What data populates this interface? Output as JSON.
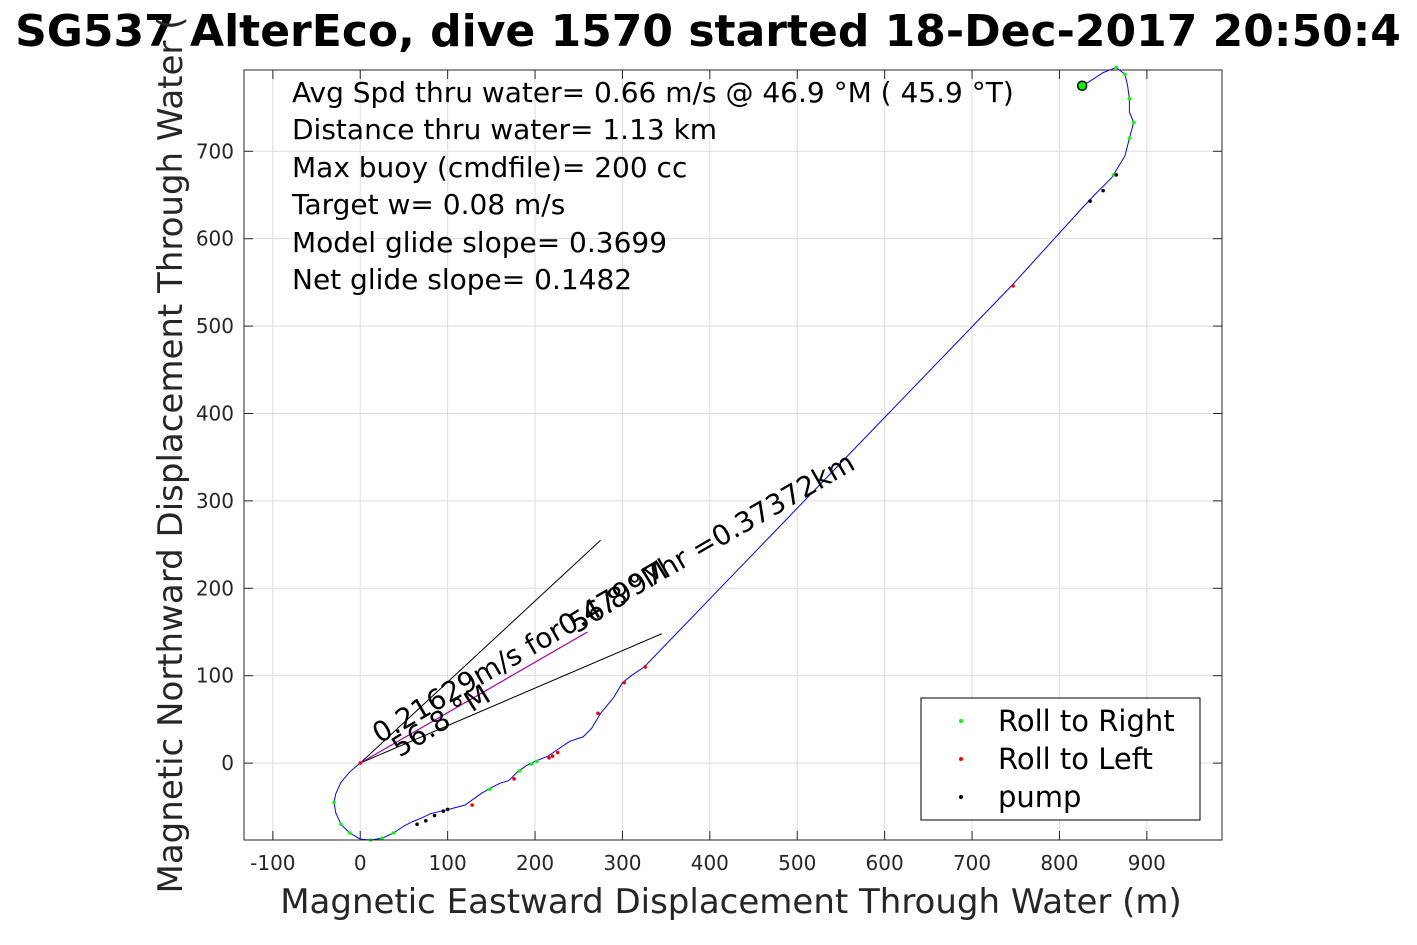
{
  "chart_data": {
    "type": "line",
    "title": "SG537 AlterEco, dive 1570 started 18-Dec-2017 20:50:4",
    "xlabel": "Magnetic Eastward Displacement Through Water (m)",
    "ylabel": "Magnetic Northward Displacement Through Water (",
    "xlim": [
      -133,
      986
    ],
    "ylim": [
      -88,
      793
    ],
    "xticks": [
      -100,
      0,
      100,
      200,
      300,
      400,
      500,
      600,
      700,
      800,
      900
    ],
    "yticks": [
      0,
      100,
      200,
      300,
      400,
      500,
      600,
      700
    ],
    "grid": true,
    "info_lines": [
      "Avg Spd thru water=  0.66 m/s @  46.9 °M ( 45.9 °T)",
      "Distance thru water=  1.13 km",
      "Max buoy (cmdfile)= 200 cc",
      "Target w= 0.08 m/s",
      "Model glide slope= 0.3699",
      "Net glide slope= 0.1482"
    ],
    "track": {
      "name": "Track",
      "color": "#0000ff",
      "x": [
        0,
        -12,
        -22,
        -28,
        -30,
        -28,
        -22,
        -12,
        0,
        12,
        25,
        38,
        50,
        60,
        70,
        80,
        92,
        105,
        120,
        138,
        150,
        160,
        170,
        180,
        190,
        200,
        215,
        225,
        240,
        255,
        265,
        275,
        290,
        300,
        310,
        325,
        745,
        825,
        840,
        860,
        875,
        880,
        885,
        880,
        880,
        878,
        875,
        865,
        850,
        827
      ],
      "y": [
        0,
        -10,
        -22,
        -35,
        -45,
        -57,
        -70,
        -80,
        -87,
        -88,
        -86,
        -80,
        -72,
        -67,
        -63,
        -58,
        -55,
        -52,
        -48,
        -35,
        -28,
        -23,
        -20,
        -10,
        -3,
        2,
        8,
        15,
        25,
        30,
        40,
        57,
        75,
        92,
        100,
        110,
        546,
        634,
        650,
        670,
        695,
        715,
        733,
        745,
        760,
        775,
        788,
        796,
        790,
        775
      ]
    },
    "roll_right": {
      "name": "Roll to Right",
      "color": "#00ff00",
      "points": [
        [
          -30,
          -45
        ],
        [
          -22,
          -70
        ],
        [
          -12,
          -80
        ],
        [
          12,
          -88
        ],
        [
          25,
          -86
        ],
        [
          38,
          -80
        ],
        [
          148,
          -30
        ],
        [
          182,
          -9
        ],
        [
          196,
          -1
        ],
        [
          202,
          2
        ],
        [
          862,
          673
        ],
        [
          880,
          715
        ],
        [
          885,
          733
        ],
        [
          880,
          760
        ],
        [
          875,
          788
        ],
        [
          865,
          796
        ]
      ]
    },
    "roll_left": {
      "name": "Roll to Left",
      "color": "#ff0000",
      "points": [
        [
          0,
          0
        ],
        [
          128,
          -48
        ],
        [
          176,
          -18
        ],
        [
          216,
          6
        ],
        [
          220,
          8
        ],
        [
          226,
          12
        ],
        [
          272,
          57
        ],
        [
          302,
          92
        ],
        [
          326,
          110
        ],
        [
          747,
          546
        ]
      ]
    },
    "pump": {
      "name": "pump",
      "color": "#000000",
      "points": [
        [
          65,
          -70
        ],
        [
          75,
          -66
        ],
        [
          85,
          -60
        ],
        [
          95,
          -55
        ],
        [
          100,
          -53
        ],
        [
          835,
          643
        ],
        [
          850,
          655
        ],
        [
          865,
          673
        ]
      ]
    },
    "direction_lines": [
      {
        "x": [
          0,
          275
        ],
        "y": [
          0,
          255
        ]
      },
      {
        "x": [
          0,
          345
        ],
        "y": [
          0,
          148
        ]
      }
    ],
    "current_vector": {
      "x": [
        0,
        260
      ],
      "y": [
        0,
        150
      ],
      "color": "#aa00aa"
    },
    "annotations": [
      {
        "text": "0.21629m/s for0.47997hr =0.37372km",
        "x": 22,
        "y": 22,
        "angle": 30
      },
      {
        "text": "56.8 °M",
        "x": 45,
        "y": 6,
        "angle": 32
      },
      {
        "text": "56.8 °M",
        "x": 248,
        "y": 148,
        "angle": 32
      }
    ],
    "end_marker": {
      "x": 826,
      "y": 775
    },
    "legend": {
      "position": "bottom-right",
      "entries": [
        {
          "label": "Roll to Right",
          "color": "#00ff00"
        },
        {
          "label": "Roll to Left",
          "color": "#ff0000"
        },
        {
          "label": "pump",
          "color": "#000000"
        }
      ]
    }
  }
}
